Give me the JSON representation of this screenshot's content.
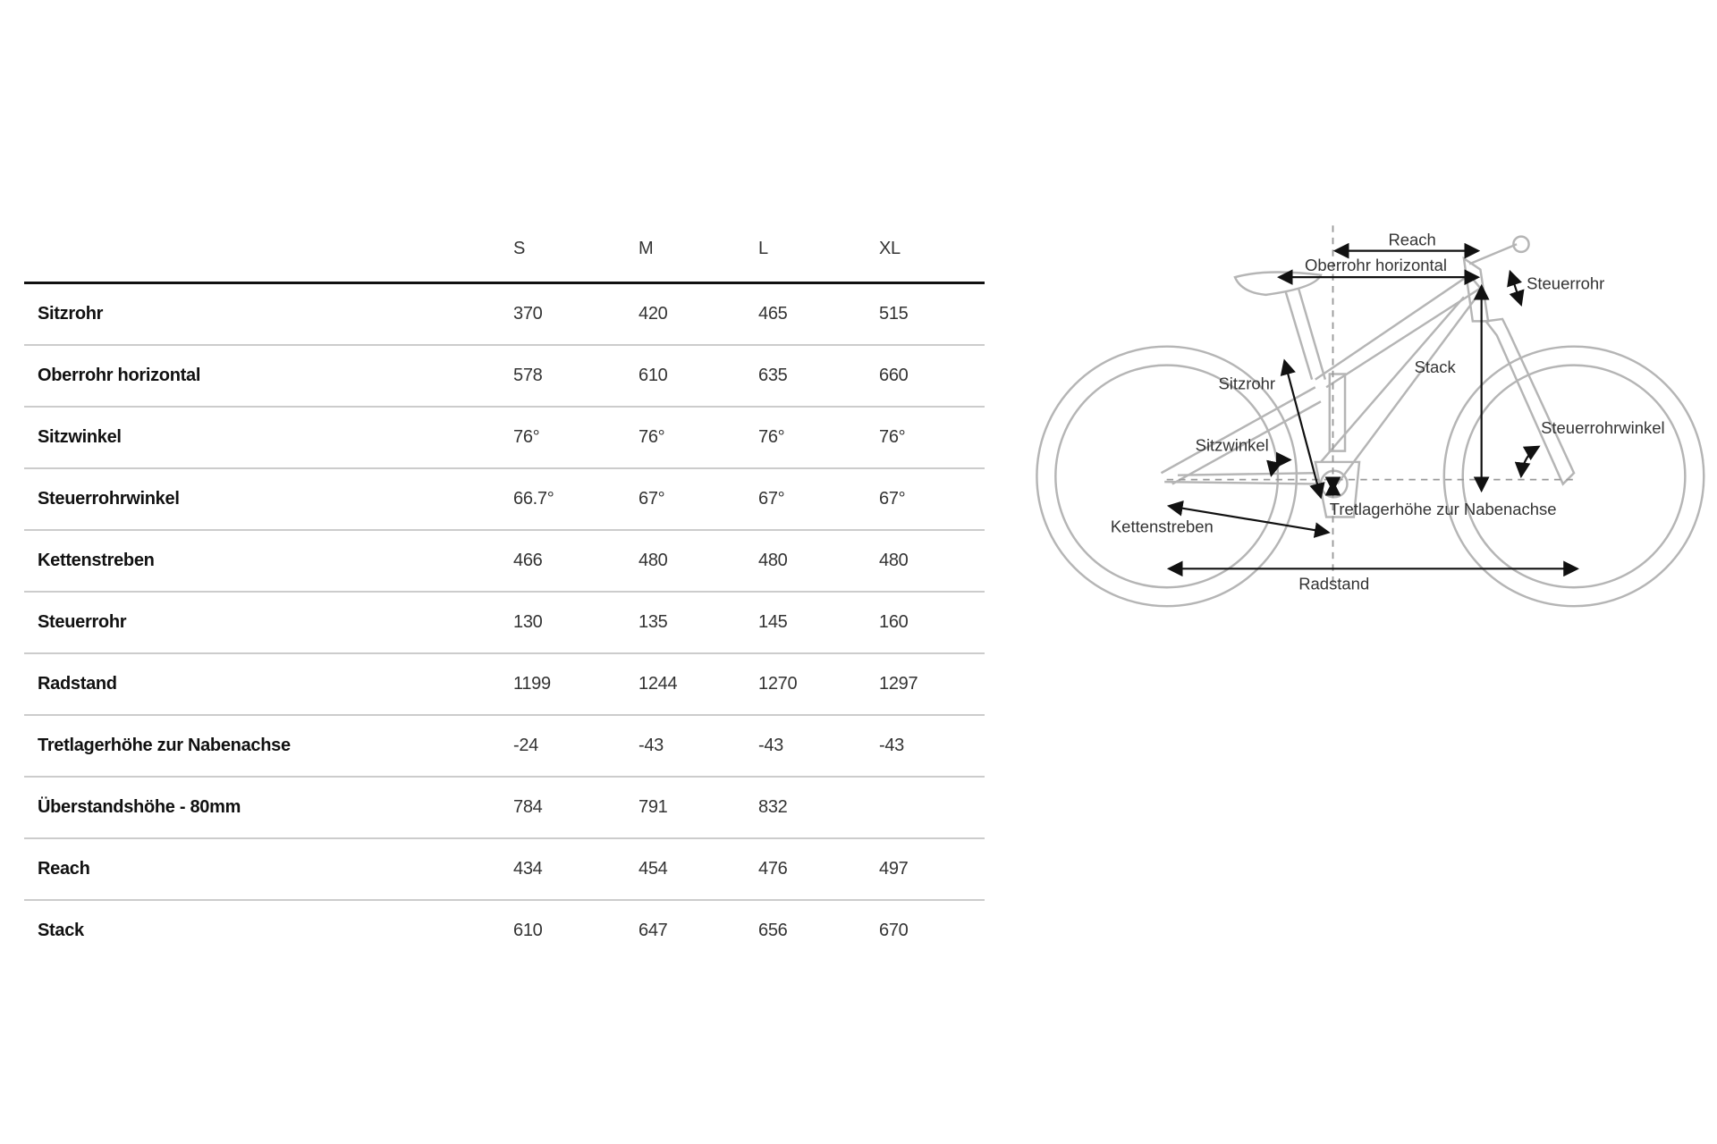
{
  "table": {
    "sizes": [
      "S",
      "M",
      "L",
      "XL"
    ],
    "rows": [
      {
        "label": "Sitzrohr",
        "values": [
          "370",
          "420",
          "465",
          "515"
        ]
      },
      {
        "label": "Oberrohr horizontal",
        "values": [
          "578",
          "610",
          "635",
          "660"
        ]
      },
      {
        "label": "Sitzwinkel",
        "values": [
          "76°",
          "76°",
          "76°",
          "76°"
        ]
      },
      {
        "label": "Steuerrohrwinkel",
        "values": [
          "66.7°",
          "67°",
          "67°",
          "67°"
        ]
      },
      {
        "label": "Kettenstreben",
        "values": [
          "466",
          "480",
          "480",
          "480"
        ]
      },
      {
        "label": "Steuerrohr",
        "values": [
          "130",
          "135",
          "145",
          "160"
        ]
      },
      {
        "label": "Radstand",
        "values": [
          "1199",
          "1244",
          "1270",
          "1297"
        ]
      },
      {
        "label": "Tretlagerhöhe zur Nabenachse",
        "values": [
          "-24",
          "-43",
          "-43",
          "-43"
        ]
      },
      {
        "label": "Überstandshöhe - 80mm",
        "values": [
          "784",
          "791",
          "832",
          ""
        ]
      },
      {
        "label": "Reach",
        "values": [
          "434",
          "454",
          "476",
          "497"
        ]
      },
      {
        "label": "Stack",
        "values": [
          "610",
          "647",
          "656",
          "670"
        ]
      }
    ]
  },
  "diagram": {
    "labels": {
      "reach": "Reach",
      "top_tube": "Oberrohr horizontal",
      "head_tube": "Steuerrohr",
      "stack": "Stack",
      "seat_tube": "Sitzrohr",
      "seat_angle": "Sitzwinkel",
      "head_angle": "Steuerrohrwinkel",
      "bb_drop": "Tretlagerhöhe zur Nabenachse",
      "chainstay": "Kettenstreben",
      "wheelbase": "Radstand"
    },
    "colors": {
      "frame": "#b5b5b5",
      "arrows": "#111111"
    }
  }
}
